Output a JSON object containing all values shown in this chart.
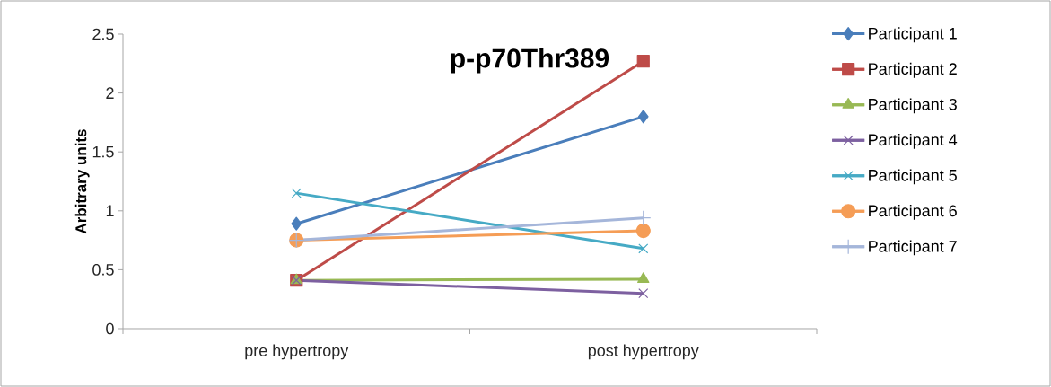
{
  "chart_data": {
    "type": "line",
    "title": "p-p70Thr389",
    "ylabel": "Arbitrary units",
    "categories": [
      "pre hypertropy",
      "post hypertropy"
    ],
    "series": [
      {
        "name": "Participant 1",
        "color": "#4a7ebb",
        "marker": "diamond",
        "values": [
          0.89,
          1.8
        ]
      },
      {
        "name": "Participant 2",
        "color": "#be4b48",
        "marker": "square",
        "values": [
          0.41,
          2.27
        ]
      },
      {
        "name": "Participant 3",
        "color": "#98b954",
        "marker": "triangle",
        "values": [
          0.41,
          0.42
        ]
      },
      {
        "name": "Participant 4",
        "color": "#7d60a0",
        "marker": "cross",
        "values": [
          0.41,
          0.3
        ]
      },
      {
        "name": "Participant 5",
        "color": "#46aac5",
        "marker": "cross",
        "values": [
          1.15,
          0.68
        ]
      },
      {
        "name": "Participant 6",
        "color": "#f59d56",
        "marker": "circle",
        "values": [
          0.75,
          0.83
        ]
      },
      {
        "name": "Participant 7",
        "color": "#a5b6da",
        "marker": "plus",
        "values": [
          0.75,
          0.94
        ]
      }
    ],
    "ylim": [
      0,
      2.5
    ],
    "yticks": [
      0,
      0.5,
      1,
      1.5,
      2,
      2.5
    ],
    "grid": false,
    "legend": "right",
    "line_style": "solid"
  }
}
